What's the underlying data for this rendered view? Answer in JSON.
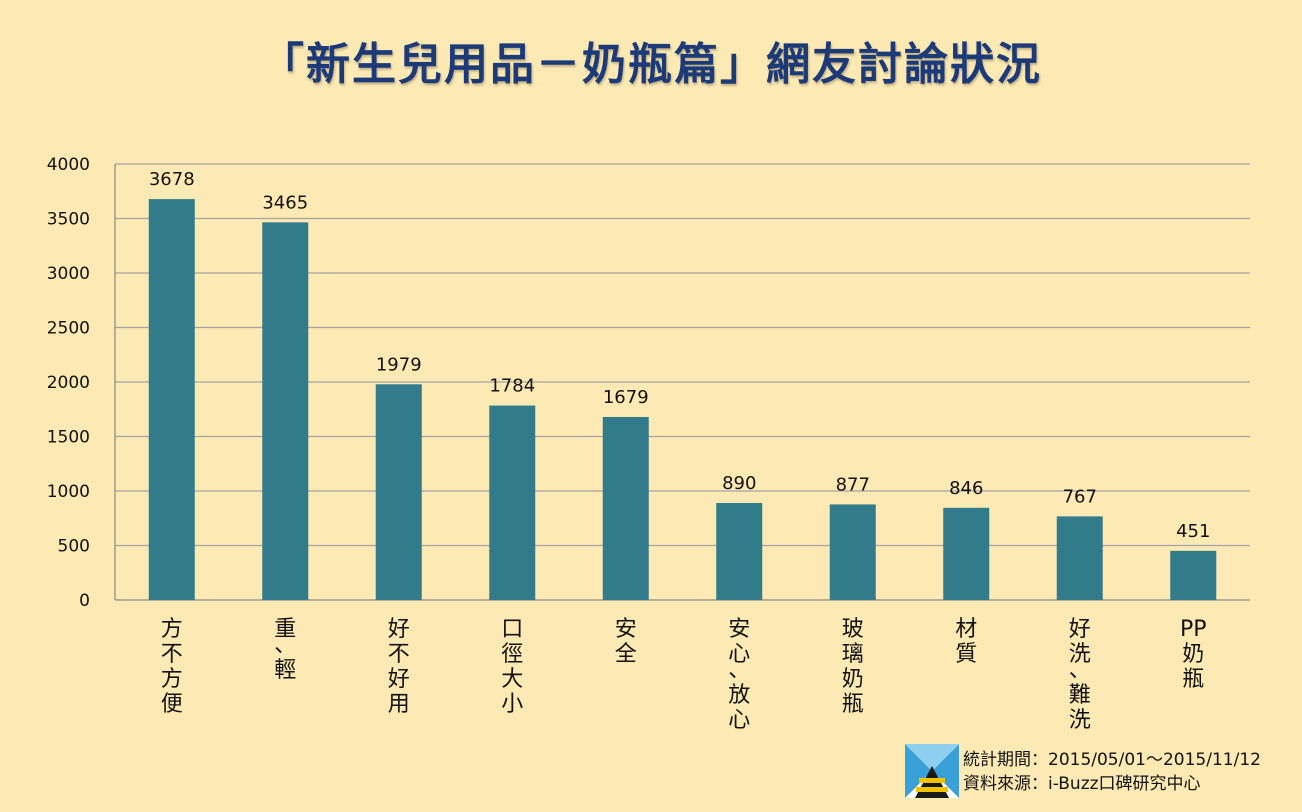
{
  "title": "「新生兒用品－奶瓶篇」網友討論狀況",
  "chart_data": {
    "type": "bar",
    "title": "「新生兒用品－奶瓶篇」網友討論狀況",
    "xlabel": "",
    "ylabel": "",
    "ylim": [
      0,
      4000
    ],
    "yticks": [
      "0",
      "500",
      "1000",
      "1500",
      "2000",
      "2500",
      "3000",
      "3500",
      "4000"
    ],
    "grid": true,
    "categories": [
      "方不方便",
      "重、輕",
      "好不好用",
      "口徑大小",
      "安全",
      "安心、放心",
      "玻璃奶瓶",
      "材質",
      "好洗、難洗",
      "PP奶瓶"
    ],
    "category_lines": [
      [
        "方",
        "不",
        "方",
        "便"
      ],
      [
        "重",
        "、",
        "輕"
      ],
      [
        "好",
        "不",
        "好",
        "用"
      ],
      [
        "口",
        "徑",
        "大",
        "小"
      ],
      [
        "安",
        "全"
      ],
      [
        "安",
        "心",
        "、",
        "放",
        "心"
      ],
      [
        "玻",
        "璃",
        "奶",
        "瓶"
      ],
      [
        "材",
        "質"
      ],
      [
        "好",
        "洗",
        "、",
        "難",
        "洗"
      ],
      [
        "PP",
        "奶",
        "瓶"
      ]
    ],
    "values": [
      3678,
      3465,
      1979,
      1784,
      1679,
      890,
      877,
      846,
      767,
      451
    ],
    "colors": {
      "bar": "#327b8b",
      "grid": "#a3a3a3",
      "axis": "#888888"
    }
  },
  "source": {
    "period": "統計期間：2015/05/01～2015/11/12",
    "origin": "資料來源：i-Buzz口碑研究中心"
  }
}
